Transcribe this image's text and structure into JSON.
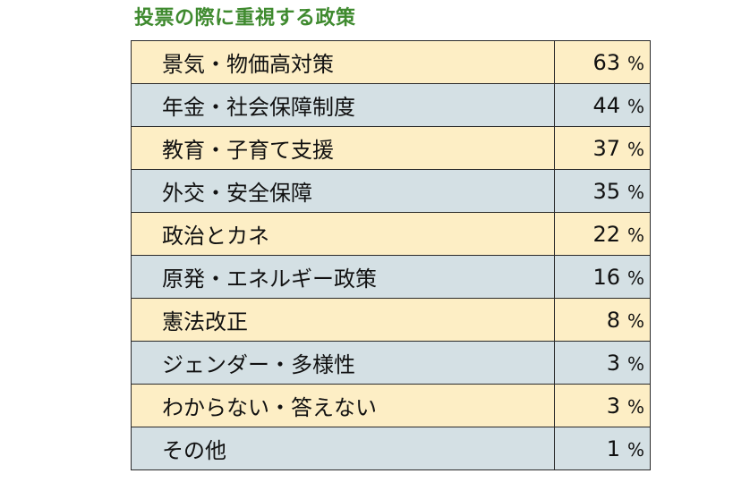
{
  "chart_data": {
    "type": "table",
    "title": "投票の際に重視する政策",
    "unit": "%",
    "colors": {
      "title": "#3f8a2f",
      "row_odd": "#fdeec5",
      "row_even": "#d4e0e4",
      "border": "#2a2a2a"
    },
    "rows": [
      {
        "label": "景気・物価高対策",
        "value": 63
      },
      {
        "label": "年金・社会保障制度",
        "value": 44
      },
      {
        "label": "教育・子育て支援",
        "value": 37
      },
      {
        "label": "外交・安全保障",
        "value": 35
      },
      {
        "label": "政治とカネ",
        "value": 22
      },
      {
        "label": "原発・エネルギー政策",
        "value": 16
      },
      {
        "label": "憲法改正",
        "value": 8
      },
      {
        "label": "ジェンダー・多様性",
        "value": 3
      },
      {
        "label": "わからない・答えない",
        "value": 3
      },
      {
        "label": "その他",
        "value": 1
      }
    ]
  }
}
